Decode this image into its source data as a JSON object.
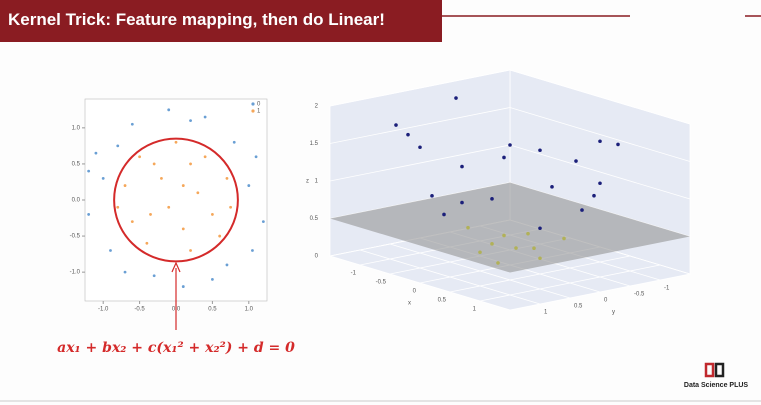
{
  "slide": {
    "title": "Kernel Trick: Feature mapping, then do Linear!",
    "equation": "ax₁ + bx₂ + c(x₁² + x₂²) + d = 0",
    "logo": "Data Science PLUS"
  },
  "chart_data": [
    {
      "type": "scatter",
      "legend": "upper right",
      "xlim": [
        -1.25,
        1.25
      ],
      "ylim": [
        -1.4,
        1.4
      ],
      "xticks": [
        {
          "value": -1,
          "label": "-1.0"
        },
        {
          "value": -0.5,
          "label": "-0.5"
        },
        {
          "value": 0,
          "label": "0.0"
        },
        {
          "value": 0.5,
          "label": "0.5"
        },
        {
          "value": 1,
          "label": "1.0"
        }
      ],
      "yticks": [
        {
          "value": -1,
          "label": "-1.0"
        },
        {
          "value": -0.5,
          "label": "-0.5"
        },
        {
          "value": 0,
          "label": "0.0"
        },
        {
          "value": 0.5,
          "label": "0.5"
        },
        {
          "value": 1,
          "label": "1.0"
        }
      ],
      "boundary": {
        "radius": 0.85,
        "color": "#d42a2a"
      },
      "series": [
        {
          "name": "0",
          "color": "#6a9fd4",
          "x": [
            1.0,
            -1.0,
            0.2,
            -0.3,
            0.8,
            -0.8,
            0.7,
            -0.9,
            1.2,
            -1.2,
            0.1,
            -0.1,
            1.1,
            -1.1,
            0.5,
            -0.6,
            1.05,
            -0.7,
            0.4,
            -1.2
          ],
          "y": [
            0.2,
            0.3,
            1.1,
            -1.05,
            0.8,
            0.75,
            -0.9,
            -0.7,
            -0.3,
            -0.2,
            -1.2,
            1.25,
            0.6,
            0.65,
            -1.1,
            1.05,
            -0.7,
            -1.0,
            1.15,
            0.4
          ]
        },
        {
          "name": "1",
          "color": "#f5a75a",
          "x": [
            0.1,
            -0.3,
            0.5,
            -0.6,
            0.2,
            0.7,
            -0.1,
            0.4,
            -0.7,
            0.0,
            -0.4,
            0.6,
            -0.2,
            0.3,
            -0.5,
            0.1,
            0.75,
            -0.8,
            0.2,
            -0.35
          ],
          "y": [
            0.2,
            0.5,
            -0.2,
            -0.3,
            -0.7,
            0.3,
            -0.1,
            0.6,
            0.2,
            0.8,
            -0.6,
            -0.5,
            0.3,
            0.1,
            0.6,
            -0.4,
            -0.1,
            -0.1,
            0.5,
            -0.2
          ]
        }
      ]
    },
    {
      "type": "scatter3d",
      "xlabel": "x",
      "ylabel": "y",
      "zlabel": "z",
      "xlim": [
        -1.5,
        1.5
      ],
      "ylim": [
        -1.5,
        1.5
      ],
      "zlim": [
        0,
        2
      ],
      "xticks": [
        -1,
        -0.5,
        0,
        0.5,
        1
      ],
      "yticks": [
        -1,
        -0.5,
        0,
        0.5,
        1
      ],
      "zticks": [
        0,
        0.5,
        1,
        1.5,
        2
      ],
      "plane_z": 0.5,
      "series": [
        {
          "color": "#dede1a",
          "x": [
            0.1,
            -0.3,
            0.4,
            -0.2,
            0.5,
            -0.6,
            0.3,
            0.6,
            -0.4,
            0.0
          ],
          "y": [
            0.3,
            0.2,
            -0.1,
            -0.5,
            0.4,
            0.1,
            0.6,
            -0.3,
            -0.3,
            -0.4
          ],
          "z": [
            0.1,
            0.13,
            0.17,
            0.29,
            0.41,
            0.37,
            0.45,
            0.45,
            0.25,
            0.16
          ]
        },
        {
          "color": "#1b1f7a",
          "x": [
            0.8,
            -0.7,
            0.9,
            -1.0,
            0.2,
            1.1,
            -0.5,
            0.6,
            -1.1,
            1.2,
            0.3,
            -0.9,
            1.0,
            -1.3,
            0.7,
            -0.3,
            0.5,
            -0.8,
            1.3,
            -0.2
          ],
          "y": [
            0.3,
            0.6,
            -0.5,
            -0.2,
            1.0,
            0.4,
            -1.0,
            0.9,
            0.6,
            -0.6,
            -1.2,
            1.0,
            1.0,
            -0.4,
            -0.8,
            0.8,
            -0.7,
            -0.7,
            0.2,
            1.3
          ],
          "z": [
            0.73,
            0.85,
            1.06,
            1.04,
            1.04,
            1.37,
            1.25,
            1.17,
            1.57,
            1.8,
            1.53,
            1.81,
            2.0,
            1.85,
            1.13,
            0.73,
            0.74,
            1.13,
            1.73,
            1.73
          ]
        }
      ]
    }
  ]
}
